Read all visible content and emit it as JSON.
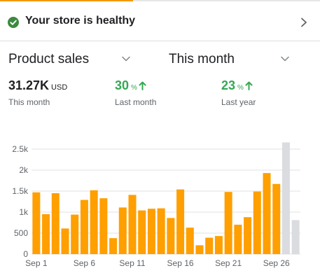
{
  "health": {
    "title": "Your store is healthy",
    "icon": "check-circle-icon",
    "chevron": "chevron-right-icon"
  },
  "selectors": {
    "metric": {
      "label": "Product sales",
      "icon": "caret-down-icon"
    },
    "period": {
      "label": "This month",
      "icon": "caret-down-icon"
    }
  },
  "stats": {
    "total": {
      "value": "31.27K",
      "unit": "USD",
      "label": "This month"
    },
    "last_month": {
      "value": "30",
      "unit": "%",
      "label": "Last month",
      "icon": "arrow-up-icon"
    },
    "last_year": {
      "value": "23",
      "unit": "%",
      "label": "Last year",
      "icon": "arrow-up-icon"
    }
  },
  "colors": {
    "accent": "#f29900",
    "bar": "#ff9f00",
    "bar_future": "#dadce0",
    "positive": "#34a853",
    "text": "#202124",
    "subtext": "#5f6368"
  },
  "chart_data": {
    "type": "bar",
    "categories": [
      "Sep 1",
      "Sep 2",
      "Sep 3",
      "Sep 4",
      "Sep 5",
      "Sep 6",
      "Sep 7",
      "Sep 8",
      "Sep 9",
      "Sep 10",
      "Sep 11",
      "Sep 12",
      "Sep 13",
      "Sep 14",
      "Sep 15",
      "Sep 16",
      "Sep 17",
      "Sep 18",
      "Sep 19",
      "Sep 20",
      "Sep 21",
      "Sep 22",
      "Sep 23",
      "Sep 24",
      "Sep 25",
      "Sep 26",
      "Sep 27",
      "Sep 28"
    ],
    "tick_labels": [
      "Sep 1",
      "Sep 6",
      "Sep 11",
      "Sep 16",
      "Sep 21",
      "Sep 26"
    ],
    "series": [
      {
        "values": [
          1470,
          950,
          1450,
          610,
          940,
          1290,
          1520,
          1330,
          380,
          1110,
          1410,
          1040,
          1080,
          1090,
          860,
          1540,
          630,
          210,
          390,
          430,
          1480,
          700,
          880,
          1490,
          1930,
          1670,
          null,
          null
        ]
      },
      {
        "values": [
          null,
          null,
          null,
          null,
          null,
          null,
          null,
          null,
          null,
          null,
          null,
          null,
          null,
          null,
          null,
          null,
          null,
          null,
          null,
          null,
          null,
          null,
          null,
          null,
          null,
          null,
          2660,
          810
        ]
      }
    ],
    "y_ticks": [
      0,
      500,
      1000,
      1500,
      2000,
      2500
    ],
    "y_tick_labels": [
      "0",
      "500",
      "1k",
      "1.5k",
      "2k",
      "2.5k"
    ],
    "ylim": [
      0,
      2800
    ],
    "grid": true
  }
}
